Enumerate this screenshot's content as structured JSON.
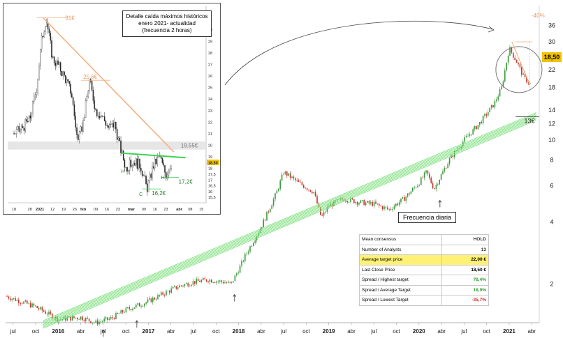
{
  "chart_data": [
    {
      "type": "line",
      "style": "candlestick",
      "title": "Frecuencia diaria",
      "y_scale": "log",
      "ylim": [
        1.3,
        45
      ],
      "y_ticks": [
        "36",
        "30",
        "26",
        "22",
        "18",
        "14",
        "12",
        "10",
        "8",
        "6",
        "4",
        "2"
      ],
      "x_ticks": [
        "jul",
        "oct",
        "2016",
        "abr",
        "jul",
        "oct",
        "2017",
        "abr",
        "jul",
        "oct",
        "2018",
        "abr",
        "jul",
        "oct",
        "2019",
        "abr",
        "jul",
        "oct",
        "2020",
        "abr",
        "jul",
        "oct",
        "2021",
        "abr"
      ],
      "x_range": [
        "2015-06",
        "2021-05"
      ],
      "series": [
        {
          "values": [
            [
              "2015-06",
              1.75
            ],
            [
              "2015-08",
              1.65
            ],
            [
              "2015-10",
              1.55
            ],
            [
              "2016-01",
              1.35
            ],
            [
              "2016-04",
              1.38
            ],
            [
              "2016-06",
              1.3
            ],
            [
              "2016-08",
              1.36
            ],
            [
              "2016-10",
              1.5
            ],
            [
              "2017-01",
              1.65
            ],
            [
              "2017-03",
              1.8
            ],
            [
              "2017-05",
              1.95
            ],
            [
              "2017-07",
              2.05
            ],
            [
              "2017-09",
              2.1
            ],
            [
              "2017-11",
              2.05
            ],
            [
              "2017-12",
              2.0
            ],
            [
              "2018-01",
              2.35
            ],
            [
              "2018-02",
              2.8
            ],
            [
              "2018-04",
              3.8
            ],
            [
              "2018-06",
              5.5
            ],
            [
              "2018-07",
              7.0
            ],
            [
              "2018-09",
              6.2
            ],
            [
              "2018-11",
              5.6
            ],
            [
              "2018-12",
              4.2
            ],
            [
              "2019-01",
              4.8
            ],
            [
              "2019-03",
              5.2
            ],
            [
              "2019-05",
              5.0
            ],
            [
              "2019-07",
              4.9
            ],
            [
              "2019-09",
              4.6
            ],
            [
              "2019-11",
              5.2
            ],
            [
              "2020-01",
              6.2
            ],
            [
              "2020-02",
              7.0
            ],
            [
              "2020-03",
              5.8
            ],
            [
              "2020-05",
              8.0
            ],
            [
              "2020-07",
              10.0
            ],
            [
              "2020-09",
              12.0
            ],
            [
              "2020-11",
              15.0
            ],
            [
              "2020-12",
              18.0
            ],
            [
              "2021-01",
              28.0
            ],
            [
              "2021-02",
              24.0
            ],
            [
              "2021-03",
              20.0
            ],
            [
              "2021-04",
              18.5
            ]
          ]
        }
      ],
      "last_price_label": "18,50",
      "annotations": [
        "-40%",
        "13€"
      ],
      "table": {
        "rows": [
          {
            "label": "Mean consensus",
            "value": "HOLD",
            "color": "#333333"
          },
          {
            "label": "Number of Analysts",
            "value": "13",
            "color": "#333333"
          },
          {
            "label": "Average target price",
            "value": "22,00 €",
            "color": "#000000",
            "highlight": true
          },
          {
            "label": "Last Close Price",
            "value": "18,50 €",
            "color": "#000000"
          },
          {
            "label": "Spread / Highest target",
            "value": "78,4%",
            "color": "#2e9e2e"
          },
          {
            "label": "Spread / Average Target",
            "value": "18,9%",
            "color": "#2e9e2e"
          },
          {
            "label": "Spread / Lowest Target",
            "value": "-35,7%",
            "color": "#d32f2f"
          }
        ]
      },
      "colors": {
        "up": "#3c9a3c",
        "down": "#c0392b",
        "channel": "#7ee07e",
        "resistance": "#f4b183"
      }
    },
    {
      "type": "line",
      "style": "candlestick",
      "title": "Detalle caída máximos históricos enero 2021- actualidad (frecuencia 2 horas)",
      "ylim": [
        15.0,
        32.0
      ],
      "y_ticks": [
        "31",
        "30",
        "29",
        "28",
        "27",
        "26",
        "25",
        "24",
        "23",
        "22",
        "21",
        "20",
        "19",
        "18,50",
        "18",
        "17,5",
        "17",
        "16,5",
        "16",
        "15,5"
      ],
      "x_ticks": [
        "18",
        "28",
        "2021",
        "12",
        "19",
        "26",
        "feb",
        "09",
        "16",
        "23",
        "mar",
        "09",
        "16",
        "23",
        "abr",
        "08",
        "15"
      ],
      "series": [
        {
          "values": [
            [
              "2020-12-18",
              21.0
            ],
            [
              "2020-12-22",
              21.3
            ],
            [
              "2020-12-28",
              22.2
            ],
            [
              "2021-01-02",
              25.0
            ],
            [
              "2021-01-05",
              29.0
            ],
            [
              "2021-01-08",
              31.0
            ],
            [
              "2021-01-12",
              27.5
            ],
            [
              "2021-01-16",
              26.8
            ],
            [
              "2021-01-20",
              25.8
            ],
            [
              "2021-01-24",
              24.5
            ],
            [
              "2021-01-28",
              20.2
            ],
            [
              "2021-02-01",
              22.0
            ],
            [
              "2021-02-05",
              25.6
            ],
            [
              "2021-02-09",
              23.0
            ],
            [
              "2021-02-13",
              22.5
            ],
            [
              "2021-02-17",
              21.5
            ],
            [
              "2021-02-21",
              21.8
            ],
            [
              "2021-02-24",
              20.0
            ],
            [
              "2021-02-28",
              18.0
            ],
            [
              "2021-03-03",
              18.6
            ],
            [
              "2021-03-07",
              18.2
            ],
            [
              "2021-03-11",
              16.2
            ],
            [
              "2021-03-15",
              18.2
            ],
            [
              "2021-03-19",
              19.0
            ],
            [
              "2021-03-23",
              17.4
            ],
            [
              "2021-03-27",
              18.5
            ]
          ]
        }
      ],
      "annotations": [
        "31€",
        "25,6€",
        "19,55€",
        "17,2€",
        "16,2€",
        "H",
        "C",
        "H?"
      ],
      "last_price_label": "18,50"
    }
  ]
}
